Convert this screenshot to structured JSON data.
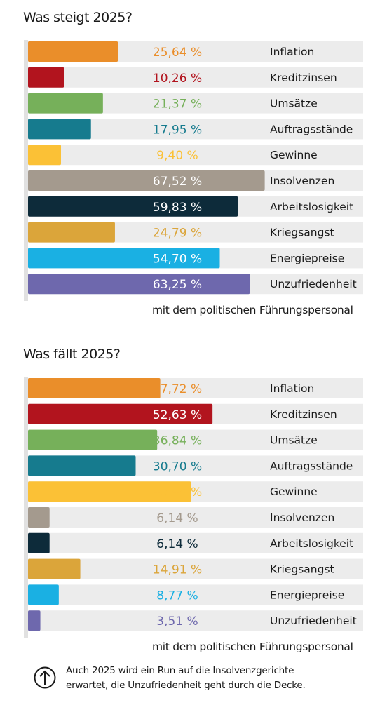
{
  "colors": {
    "inflation": "#ea8e2a",
    "kreditzinsen": "#b2141e",
    "umsaetze": "#76b05a",
    "auftragsstaende": "#167b8e",
    "gewinne": "#fbc136",
    "insolvenzen": "#a49a8e",
    "arbeitslosigkeit": "#0d2b3a",
    "kriegsangst": "#dba53a",
    "energiepreise": "#1ab0e3",
    "unzufriedenheit": "#6e68ad",
    "track": "#ececec",
    "axis": "#e1e1e1"
  },
  "note": {
    "icon": "arrow-up-circle-icon",
    "line1": "Auch 2025 wird ein Run auf die Insolvenzgerichte",
    "line2": "erwartet, die Unzufriedenheit geht durch die Decke."
  },
  "chart_data": [
    {
      "type": "bar",
      "orientation": "horizontal",
      "title": "Was steigt 2025?",
      "categories": [
        "Inflation",
        "Kreditzinsen",
        "Umsätze",
        "Auftragsstände",
        "Gewinne",
        "Insolvenzen",
        "Arbeitslosigkeit",
        "Kriegsangst",
        "Energiepreise",
        "Unzufriedenheit"
      ],
      "values": [
        25.64,
        10.26,
        21.37,
        17.95,
        9.4,
        67.52,
        59.83,
        24.79,
        54.7,
        63.25
      ],
      "value_labels": [
        "25,64 %",
        "10,26 %",
        "21,37 %",
        "17,95 %",
        "9,40 %",
        "67,52 %",
        "59,83 %",
        "24,79 %",
        "54,70 %",
        "63,25 %"
      ],
      "label_colors": [
        "#ea8e2a",
        "#b2141e",
        "#76b05a",
        "#167b8e",
        "#fbc136",
        "#ffffff",
        "#ffffff",
        "#dba53a",
        "#ffffff",
        "#ffffff"
      ],
      "footnote": "mit dem politischen Führungspersonal",
      "xlim": [
        0,
        100
      ],
      "grid": false
    },
    {
      "type": "bar",
      "orientation": "horizontal",
      "title": "Was fällt 2025?",
      "categories": [
        "Inflation",
        "Kreditzinsen",
        "Umsätze",
        "Auftragsstände",
        "Gewinne",
        "Insolvenzen",
        "Arbeitslosigkeit",
        "Kriegsangst",
        "Energiepreise",
        "Unzufriedenheit"
      ],
      "values": [
        37.72,
        52.63,
        36.84,
        30.7,
        46.49,
        6.14,
        6.14,
        14.91,
        8.77,
        3.51
      ],
      "value_labels": [
        "37,72 %",
        "52,63 %",
        "36,84 %",
        "30,70 %",
        "46,49 %",
        "6,14 %",
        "6,14 %",
        "14,91 %",
        "8,77 %",
        "3,51 %"
      ],
      "label_colors": [
        "#ea8e2a",
        "#ffffff",
        "#76b05a",
        "#167b8e",
        "#fbc136",
        "#a49a8e",
        "#0d2b3a",
        "#dba53a",
        "#1ab0e3",
        "#6e68ad"
      ],
      "footnote": "mit dem politischen Führungspersonal",
      "xlim": [
        0,
        100
      ],
      "grid": false
    }
  ]
}
